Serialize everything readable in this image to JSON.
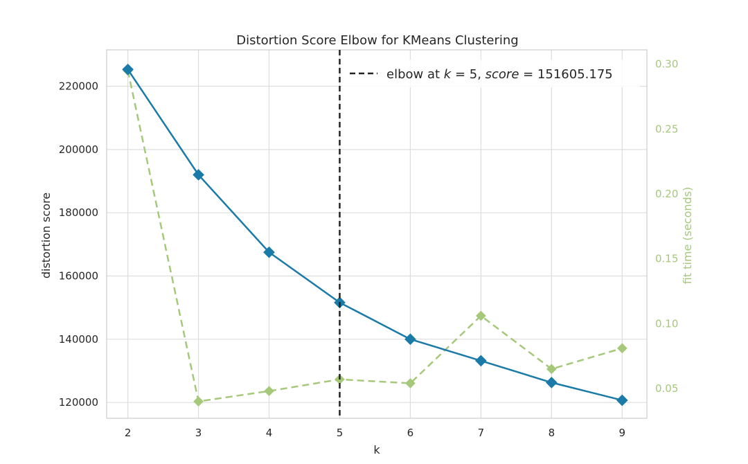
{
  "chart_data": {
    "type": "line",
    "title": "Distortion Score Elbow for KMeans Clustering",
    "xlabel": "k",
    "ylabel": "distortion score",
    "y2label": "fit time (seconds)",
    "x": [
      2,
      3,
      4,
      5,
      6,
      7,
      8,
      9
    ],
    "xticks": [
      "2",
      "3",
      "4",
      "5",
      "6",
      "7",
      "8",
      "9"
    ],
    "xlim": [
      1.7,
      9.35
    ],
    "ylim": [
      115000,
      231500
    ],
    "y2lim": [
      0.027,
      0.311
    ],
    "yticks": [
      "120000",
      "140000",
      "160000",
      "180000",
      "200000",
      "220000"
    ],
    "y2ticks": [
      "0.05",
      "0.10",
      "0.15",
      "0.20",
      "0.25",
      "0.30"
    ],
    "grid": true,
    "series": [
      {
        "role": "distortion",
        "axis": "left",
        "color": "#1a7aa8",
        "style": "solid",
        "marker": "diamond",
        "values": [
          225300,
          192000,
          167500,
          151605,
          140000,
          133200,
          126300,
          120700
        ]
      },
      {
        "role": "fit_time",
        "axis": "right",
        "color": "#a5c87a",
        "style": "dashed",
        "marker": "diamond",
        "values": [
          0.295,
          0.04,
          0.048,
          0.057,
          0.054,
          0.106,
          0.065,
          0.081
        ]
      }
    ],
    "elbow": {
      "k": 5,
      "score": 151605.175,
      "label_prefix": "elbow at ",
      "label_k": "k",
      "label_eq1": " = 5, ",
      "label_score": "score",
      "label_eq2": " = 151605.175"
    },
    "legend": "top-right"
  }
}
